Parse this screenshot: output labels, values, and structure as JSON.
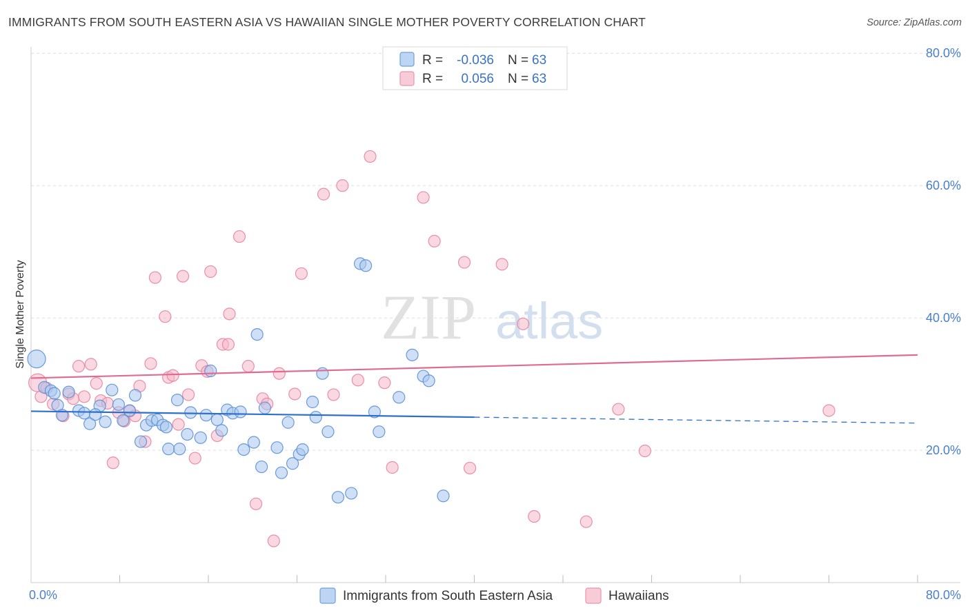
{
  "title": "IMMIGRANTS FROM SOUTH EASTERN ASIA VS HAWAIIAN SINGLE MOTHER POVERTY CORRELATION CHART",
  "source": "Source: ZipAtlas.com",
  "watermark": {
    "zip": "ZIP",
    "atlas": "atlas"
  },
  "colors": {
    "blue_fill": "#a8c6ee",
    "blue_stroke": "#5b8fd6",
    "blue_line": "#2c6fcc",
    "pink_fill": "#f5b8cb",
    "pink_stroke": "#e7849f",
    "pink_line": "#e06b92",
    "axis_text": "#4a7fcf",
    "grid": "#dcdcdc"
  },
  "chart_data": {
    "type": "scatter",
    "title": "IMMIGRANTS FROM SOUTH EASTERN ASIA VS HAWAIIAN SINGLE MOTHER POVERTY CORRELATION CHART",
    "xlabel": "",
    "ylabel": "Single Mother Poverty",
    "xlim": [
      0,
      80
    ],
    "ylim": [
      0,
      82
    ],
    "x_tick_labels": [
      "0.0%",
      "80.0%"
    ],
    "y_ticks": [
      20,
      40,
      60,
      80
    ],
    "y_tick_labels": [
      "20.0%",
      "40.0%",
      "60.0%",
      "80.0%"
    ],
    "grid": true,
    "legend": [
      {
        "r_label": "R =",
        "r_value": "-0.036",
        "n_label": "N =",
        "n_value": "63"
      },
      {
        "r_label": "R =",
        "r_value": "0.056",
        "n_label": "N =",
        "n_value": "63"
      }
    ],
    "series": [
      {
        "name": "Immigrants from South Eastern Asia",
        "color": "blue",
        "trend": {
          "x0": 0,
          "y0": 25.9,
          "x1": 80,
          "y1": 24.1,
          "solid_until": 40
        },
        "points": [
          [
            0.5,
            33.8,
            2
          ],
          [
            1.2,
            29.5,
            1
          ],
          [
            1.8,
            29.0,
            1
          ],
          [
            2.4,
            26.8,
            1
          ],
          [
            3.4,
            28.8,
            1
          ],
          [
            2.8,
            25.3,
            1
          ],
          [
            4.3,
            26.0,
            1
          ],
          [
            4.8,
            25.6,
            1
          ],
          [
            5.3,
            24.0,
            1
          ],
          [
            6.2,
            26.7,
            1
          ],
          [
            6.7,
            24.3,
            1
          ],
          [
            7.3,
            29.1,
            1
          ],
          [
            7.9,
            26.9,
            1
          ],
          [
            8.3,
            24.5,
            1
          ],
          [
            8.9,
            26.0,
            1
          ],
          [
            9.4,
            28.3,
            1
          ],
          [
            9.9,
            21.3,
            1
          ],
          [
            10.4,
            23.8,
            1
          ],
          [
            10.9,
            24.5,
            1
          ],
          [
            11.4,
            24.6,
            1
          ],
          [
            11.9,
            23.8,
            1
          ],
          [
            12.4,
            20.2,
            1
          ],
          [
            13.2,
            27.6,
            1
          ],
          [
            13.4,
            20.2,
            1
          ],
          [
            14.1,
            22.4,
            1
          ],
          [
            14.4,
            25.7,
            1
          ],
          [
            15.3,
            21.9,
            1
          ],
          [
            15.8,
            25.3,
            1
          ],
          [
            16.2,
            32.0,
            1
          ],
          [
            16.8,
            24.6,
            1
          ],
          [
            17.2,
            23.0,
            1
          ],
          [
            17.7,
            26.1,
            1
          ],
          [
            18.2,
            25.6,
            1
          ],
          [
            18.9,
            25.8,
            1
          ],
          [
            19.2,
            20.1,
            1
          ],
          [
            20.1,
            21.2,
            1
          ],
          [
            20.4,
            37.5,
            1
          ],
          [
            20.8,
            17.5,
            1
          ],
          [
            21.1,
            26.4,
            1
          ],
          [
            22.2,
            20.4,
            1
          ],
          [
            22.6,
            16.6,
            1
          ],
          [
            23.2,
            24.2,
            1
          ],
          [
            23.6,
            18.0,
            1
          ],
          [
            24.2,
            19.4,
            1
          ],
          [
            24.5,
            20.1,
            1
          ],
          [
            25.4,
            27.3,
            1
          ],
          [
            25.7,
            25.0,
            1
          ],
          [
            26.3,
            31.6,
            1
          ],
          [
            26.8,
            22.8,
            1
          ],
          [
            27.7,
            12.9,
            1
          ],
          [
            28.9,
            13.5,
            1
          ],
          [
            29.7,
            48.2,
            1
          ],
          [
            30.2,
            47.9,
            1
          ],
          [
            31.0,
            25.8,
            1
          ],
          [
            31.4,
            22.8,
            1
          ],
          [
            33.2,
            28.0,
            1
          ],
          [
            34.4,
            34.4,
            1
          ],
          [
            35.4,
            31.2,
            1
          ],
          [
            35.9,
            30.5,
            1
          ],
          [
            37.2,
            13.1,
            1
          ],
          [
            2.1,
            28.6,
            1
          ],
          [
            5.8,
            25.4,
            1
          ],
          [
            12.2,
            23.5,
            1
          ]
        ]
      },
      {
        "name": "Hawaiians",
        "color": "pink",
        "trend": {
          "x0": 0,
          "y0": 30.9,
          "x1": 80,
          "y1": 34.4,
          "solid_until": 80
        },
        "points": [
          [
            0.6,
            30.2,
            2
          ],
          [
            0.9,
            28.1,
            1
          ],
          [
            1.4,
            29.4,
            1
          ],
          [
            2.0,
            27.0,
            1
          ],
          [
            2.9,
            25.2,
            1
          ],
          [
            3.4,
            28.5,
            1
          ],
          [
            3.8,
            27.8,
            1
          ],
          [
            4.3,
            32.7,
            1
          ],
          [
            4.8,
            28.1,
            1
          ],
          [
            5.4,
            33.0,
            1
          ],
          [
            5.9,
            30.1,
            1
          ],
          [
            6.3,
            27.5,
            1
          ],
          [
            6.9,
            27.1,
            1
          ],
          [
            7.4,
            18.1,
            1
          ],
          [
            7.9,
            25.7,
            1
          ],
          [
            8.4,
            24.4,
            1
          ],
          [
            8.9,
            25.9,
            1
          ],
          [
            9.4,
            25.2,
            1
          ],
          [
            9.8,
            29.7,
            1
          ],
          [
            10.3,
            21.3,
            1
          ],
          [
            10.8,
            33.1,
            1
          ],
          [
            11.2,
            46.1,
            1
          ],
          [
            12.1,
            40.2,
            1
          ],
          [
            12.4,
            31.0,
            1
          ],
          [
            12.8,
            31.3,
            1
          ],
          [
            13.3,
            23.9,
            1
          ],
          [
            13.7,
            46.3,
            1
          ],
          [
            14.2,
            28.4,
            1
          ],
          [
            14.8,
            18.8,
            1
          ],
          [
            15.4,
            32.8,
            1
          ],
          [
            15.9,
            31.9,
            1
          ],
          [
            16.2,
            47.0,
            1
          ],
          [
            16.8,
            22.2,
            1
          ],
          [
            17.3,
            36.0,
            1
          ],
          [
            17.8,
            36.0,
            1
          ],
          [
            17.9,
            40.6,
            1
          ],
          [
            18.8,
            52.3,
            1
          ],
          [
            19.6,
            32.7,
            1
          ],
          [
            20.3,
            11.9,
            1
          ],
          [
            20.9,
            27.8,
            1
          ],
          [
            21.3,
            27.0,
            1
          ],
          [
            21.9,
            6.3,
            1
          ],
          [
            22.4,
            31.6,
            1
          ],
          [
            23.8,
            28.5,
            1
          ],
          [
            24.4,
            46.7,
            1
          ],
          [
            26.4,
            58.7,
            1
          ],
          [
            27.3,
            28.4,
            1
          ],
          [
            28.1,
            60.0,
            1
          ],
          [
            29.5,
            30.6,
            1
          ],
          [
            30.6,
            64.4,
            1
          ],
          [
            31.9,
            30.2,
            1
          ],
          [
            32.6,
            17.4,
            1
          ],
          [
            35.4,
            58.2,
            1
          ],
          [
            36.4,
            51.6,
            1
          ],
          [
            39.1,
            48.4,
            1
          ],
          [
            39.6,
            17.3,
            1
          ],
          [
            42.5,
            48.1,
            1
          ],
          [
            44.4,
            39.1,
            1
          ],
          [
            45.4,
            10.0,
            1
          ],
          [
            50.1,
            9.2,
            1
          ],
          [
            53.0,
            26.2,
            1
          ],
          [
            55.4,
            19.9,
            1
          ],
          [
            72.0,
            26.0,
            1
          ]
        ]
      }
    ]
  }
}
